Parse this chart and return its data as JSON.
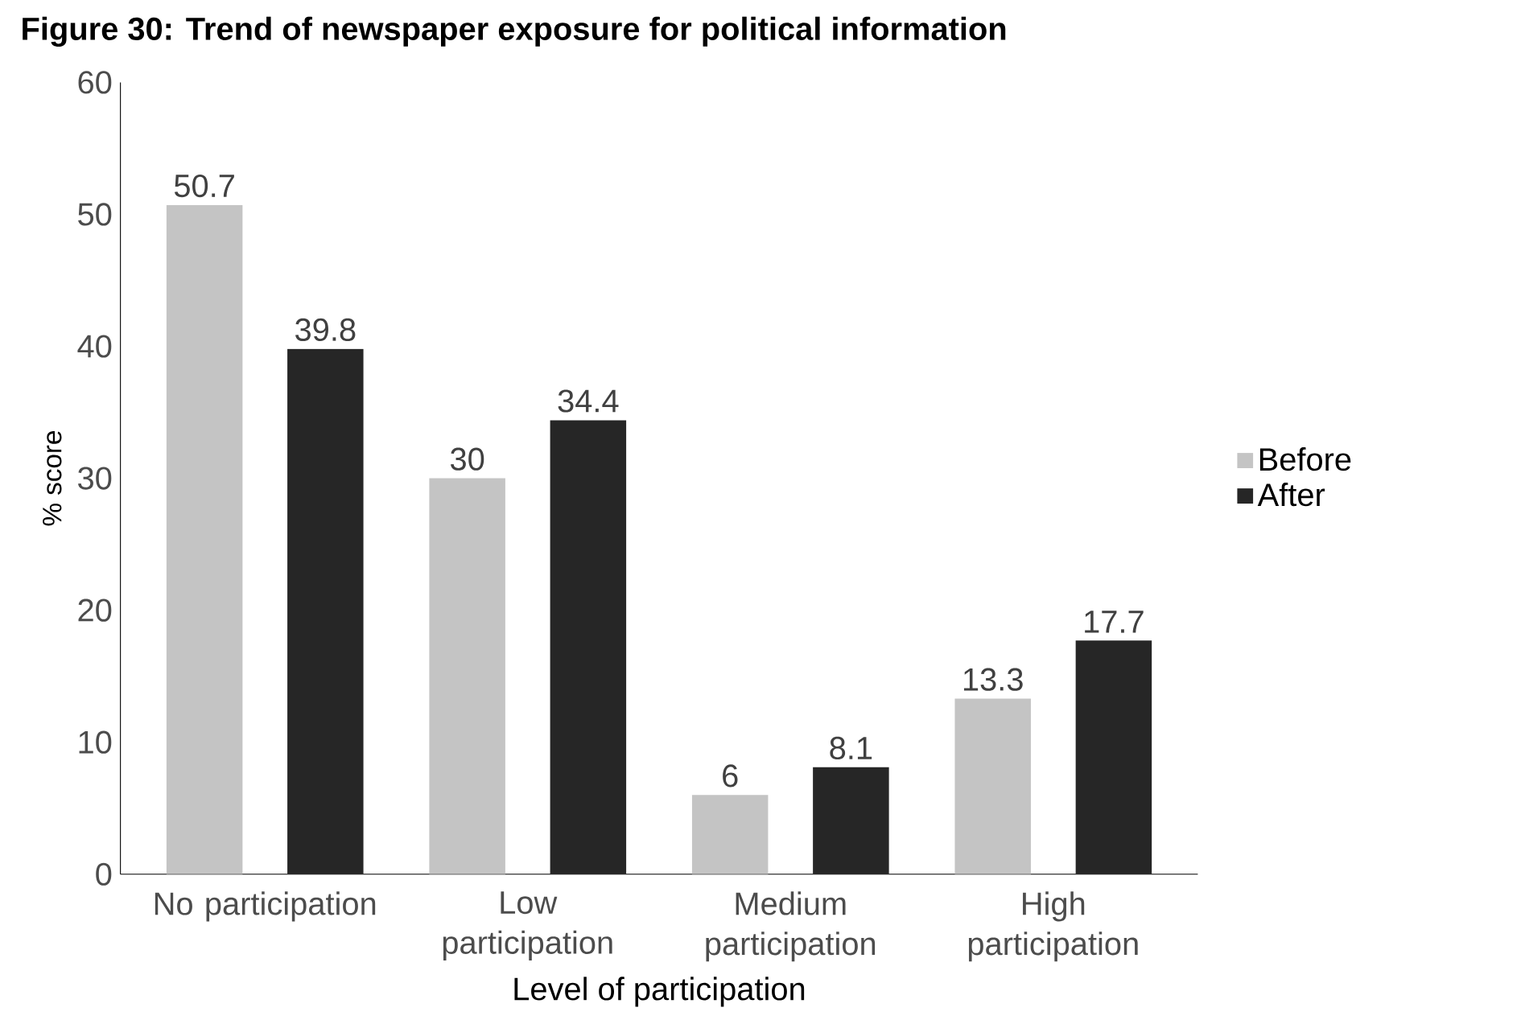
{
  "chart_data": {
    "type": "bar",
    "title": "Figure 30: Trend of newspaper exposure for political information",
    "xlabel": "Level of participation",
    "ylabel": "% score",
    "categories": [
      "No participation",
      "Low participation",
      "Medium participation",
      "High participation"
    ],
    "series": [
      {
        "name": "Before",
        "color": "#c4c4c4",
        "values": [
          50.7,
          30,
          6,
          13.3
        ]
      },
      {
        "name": "After",
        "color": "#262626",
        "values": [
          39.8,
          34.4,
          8.1,
          17.7
        ]
      }
    ],
    "ylim": [
      0,
      60
    ],
    "yticks": [
      0,
      10,
      20,
      30,
      40,
      50,
      60
    ],
    "data_labels": true,
    "legend": "right",
    "grid": false
  }
}
